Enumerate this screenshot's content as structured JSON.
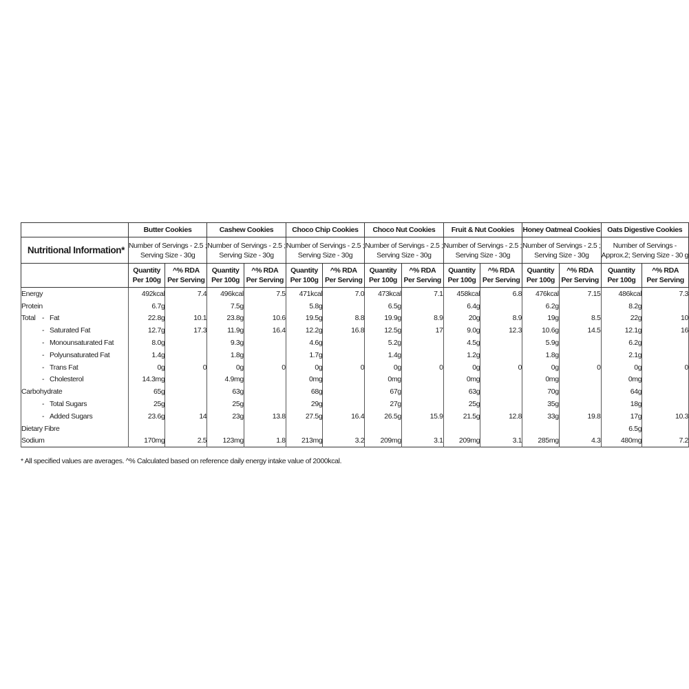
{
  "table": {
    "title": "Nutritional Information*",
    "qty_header": [
      "Quantity",
      "Per 100g"
    ],
    "rda_header": [
      "^% RDA",
      "Per Serving"
    ],
    "rows": [
      {
        "prefix": "",
        "dash": false,
        "label": "Energy"
      },
      {
        "prefix": "",
        "dash": false,
        "label": "Protein"
      },
      {
        "prefix": "Total",
        "dash": true,
        "label": "Fat"
      },
      {
        "prefix": "",
        "dash": true,
        "label": "Saturated Fat"
      },
      {
        "prefix": "",
        "dash": true,
        "label": "Monounsaturated Fat"
      },
      {
        "prefix": "",
        "dash": true,
        "label": "Polyunsaturated Fat"
      },
      {
        "prefix": "",
        "dash": true,
        "label": "Trans Fat"
      },
      {
        "prefix": "",
        "dash": true,
        "label": "Cholesterol"
      },
      {
        "prefix": "",
        "dash": false,
        "label": "Carbohydrate"
      },
      {
        "prefix": "",
        "dash": true,
        "label": "Total Sugars"
      },
      {
        "prefix": "",
        "dash": true,
        "label": "Added Sugars"
      },
      {
        "prefix": "",
        "dash": false,
        "label": "Dietary Fibre"
      },
      {
        "prefix": "",
        "dash": false,
        "label": "Sodium"
      }
    ],
    "products": [
      {
        "name": "Butter Cookies",
        "serving": [
          "Number of Servings - 2.5 ;",
          "Serving Size - 30g"
        ],
        "qty": [
          "492kcal",
          "6.7g",
          "22.8g",
          "12.7g",
          "8.0g",
          "1.4g",
          "0g",
          "14.3mg",
          "65g",
          "25g",
          "23.6g",
          "",
          "170mg"
        ],
        "rda": [
          "7.4",
          "",
          "10.1",
          "17.3",
          "",
          "",
          "0",
          "",
          "",
          "",
          "14",
          "",
          "2.5"
        ]
      },
      {
        "name": "Cashew Cookies",
        "serving": [
          "Number of Servings - 2.5 ;",
          "Serving Size - 30g"
        ],
        "qty": [
          "496kcal",
          "7.5g",
          "23.8g",
          "11.9g",
          "9.3g",
          "1.8g",
          "0g",
          "4.9mg",
          "63g",
          "25g",
          "23g",
          "",
          "123mg"
        ],
        "rda": [
          "7.5",
          "",
          "10.6",
          "16.4",
          "",
          "",
          "0",
          "",
          "",
          "",
          "13.8",
          "",
          "1.8"
        ]
      },
      {
        "name": "Choco Chip Cookies",
        "serving": [
          "Number of Servings - 2.5 ;",
          "Serving Size - 30g"
        ],
        "qty": [
          "471kcal",
          "5.8g",
          "19.5g",
          "12.2g",
          "4.6g",
          "1.7g",
          "0g",
          "0mg",
          "68g",
          "29g",
          "27.5g",
          "",
          "213mg"
        ],
        "rda": [
          "7.0",
          "",
          "8.8",
          "16.8",
          "",
          "",
          "0",
          "",
          "",
          "",
          "16.4",
          "",
          "3.2"
        ]
      },
      {
        "name": "Choco Nut Cookies",
        "serving": [
          "Number of Servings - 2.5 ;",
          "Serving Size - 30g"
        ],
        "qty": [
          "473kcal",
          "6.5g",
          "19.9g",
          "12.5g",
          "5.2g",
          "1.4g",
          "0g",
          "0mg",
          "67g",
          "27g",
          "26.5g",
          "",
          "209mg"
        ],
        "rda": [
          "7.1",
          "",
          "8.9",
          "17",
          "",
          "",
          "0",
          "",
          "",
          "",
          "15.9",
          "",
          "3.1"
        ]
      },
      {
        "name": "Fruit & Nut Cookies",
        "serving": [
          "Number of Servings - 2.5 ;",
          "Serving Size - 30g"
        ],
        "qty": [
          "458kcal",
          "6.4g",
          "20g",
          "9.0g",
          "4.5g",
          "1.2g",
          "0g",
          "0mg",
          "63g",
          "25g",
          "21.5g",
          "",
          "209mg"
        ],
        "rda": [
          "6.8",
          "",
          "8.9",
          "12.3",
          "",
          "",
          "0",
          "",
          "",
          "",
          "12.8",
          "",
          "3.1"
        ]
      },
      {
        "name": "Honey Oatmeal Cookies",
        "serving": [
          "Number of Servings - 2.5 ;",
          "Serving Size - 30g"
        ],
        "qty": [
          "476kcal",
          "6.2g",
          "19g",
          "10.6g",
          "5.9g",
          "1.8g",
          "0g",
          "0mg",
          "70g",
          "35g",
          "33g",
          "",
          "285mg"
        ],
        "rda": [
          "7.15",
          "",
          "8.5",
          "14.5",
          "",
          "",
          "0",
          "",
          "",
          "",
          "19.8",
          "",
          "4.3"
        ]
      },
      {
        "name": "Oats Digestive Cookies",
        "serving": [
          "Number of Servings -",
          "Approx.2; Serving Size - 30 g"
        ],
        "qty": [
          "486kcal",
          "8.2g",
          "22g",
          "12.1g",
          "6.2g",
          "2.1g",
          "0g",
          "0mg",
          "64g",
          "18g",
          "17g",
          "6.5g",
          "480mg"
        ],
        "rda": [
          "7.3",
          "",
          "10",
          "16",
          "",
          "",
          "0",
          "",
          "",
          "",
          "10.3",
          "",
          "7.2"
        ]
      }
    ]
  },
  "footnote": "* All specified values are averages. ^% Calculated based on reference daily energy intake value of 2000kcal."
}
